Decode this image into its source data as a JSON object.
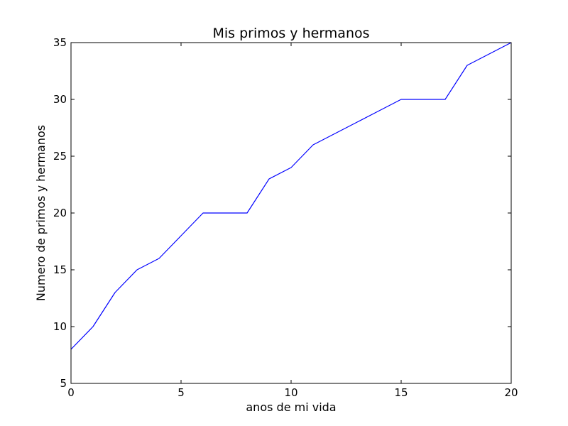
{
  "chart_data": {
    "type": "line",
    "title": "Mis primos y hermanos",
    "xlabel": "anos de mi vida",
    "ylabel": "Numero de primos y hermanos",
    "xlim": [
      0,
      20
    ],
    "ylim": [
      5,
      35
    ],
    "xticks": [
      0,
      5,
      10,
      15,
      20
    ],
    "yticks": [
      5,
      10,
      15,
      20,
      25,
      30,
      35
    ],
    "grid": false,
    "series": [
      {
        "color": "#0000ff",
        "x": [
          0,
          1,
          2,
          3,
          4,
          5,
          6,
          7,
          8,
          9,
          10,
          11,
          12,
          13,
          14,
          15,
          16,
          17,
          18,
          19,
          20
        ],
        "values": [
          8,
          10,
          13,
          15,
          16,
          18,
          20,
          20,
          20,
          23,
          24,
          26,
          27,
          28,
          29,
          30,
          30,
          30,
          33,
          34,
          35
        ]
      }
    ]
  }
}
